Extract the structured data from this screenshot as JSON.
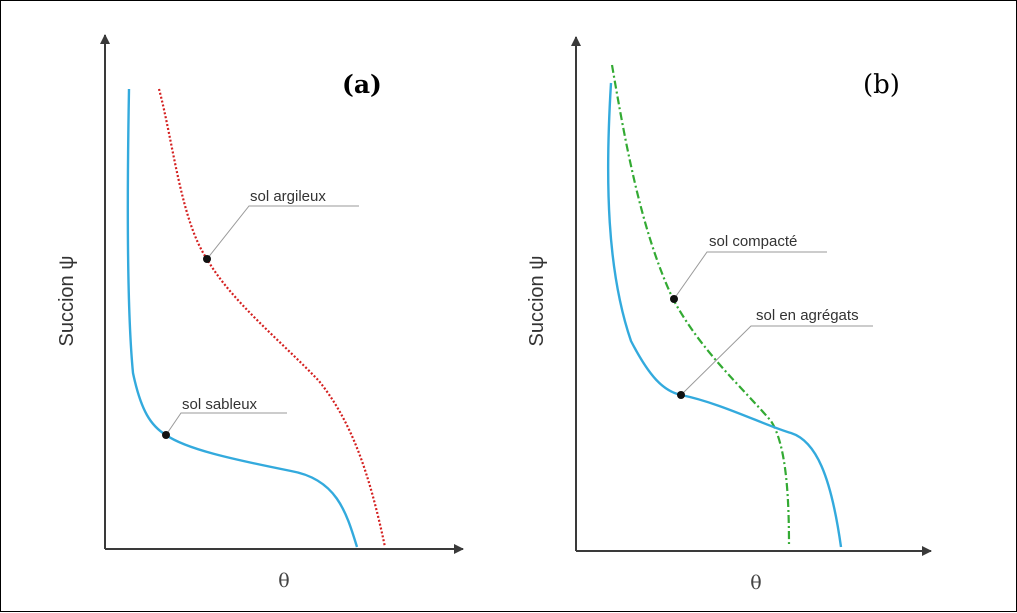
{
  "panels": [
    {
      "label": "(a)",
      "y_axis_label": "Succion ψ",
      "x_axis_label": "θ",
      "curves": [
        {
          "name": "sol argileux",
          "color": "#d42020",
          "style": "dotted"
        },
        {
          "name": "sol sableux",
          "color": "#33aadd",
          "style": "solid"
        }
      ]
    },
    {
      "label": "(b)",
      "y_axis_label": "Succion ψ",
      "x_axis_label": "θ",
      "curves": [
        {
          "name": "sol compacté",
          "color": "#33aa33",
          "style": "dash-dot"
        },
        {
          "name": "sol en agrégats",
          "color": "#33aadd",
          "style": "solid"
        }
      ]
    }
  ],
  "colors": {
    "axis": "#3a3a3a",
    "leader": "#9a9a9a",
    "underline": "#c8c8c8"
  }
}
